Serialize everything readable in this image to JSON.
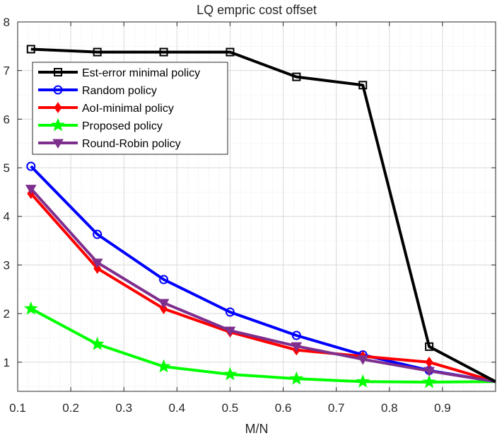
{
  "chart_data": {
    "type": "line",
    "title": "LQ empric cost offset",
    "xlabel": "M/N",
    "ylabel": "",
    "xlim": [
      0.1,
      1.0
    ],
    "ylim": [
      0.4,
      8
    ],
    "xticks": [
      0.1,
      0.2,
      0.3,
      0.4,
      0.5,
      0.6,
      0.7,
      0.8,
      0.9
    ],
    "xtick_labels": [
      "0.1",
      "0.2",
      "0.3",
      "0.4",
      "0.5",
      "0.6",
      "0.7",
      "0.8",
      "0.9"
    ],
    "yticks": [
      1,
      2,
      3,
      4,
      5,
      6,
      7,
      8
    ],
    "ytick_labels": [
      "1",
      "2",
      "3",
      "4",
      "5",
      "6",
      "7",
      "8"
    ],
    "grid": true,
    "legend_position": "top-left",
    "x": [
      0.125,
      0.25,
      0.375,
      0.5,
      0.625,
      0.75,
      0.875,
      1.0
    ],
    "series": [
      {
        "name": "Est-error minimal policy",
        "color": "#000000",
        "marker": "square",
        "values": [
          7.44,
          7.38,
          7.38,
          7.38,
          6.87,
          6.7,
          1.32,
          0.6
        ]
      },
      {
        "name": "Random policy",
        "color": "#0000ff",
        "marker": "circle",
        "values": [
          5.03,
          3.63,
          2.7,
          2.03,
          1.55,
          1.15,
          0.83,
          0.6
        ]
      },
      {
        "name": "AoI-minimal policy",
        "color": "#ff0000",
        "marker": "diamond",
        "values": [
          4.47,
          2.93,
          2.1,
          1.62,
          1.25,
          1.12,
          1.0,
          0.6
        ]
      },
      {
        "name": "Proposed policy",
        "color": "#00ff00",
        "marker": "star",
        "values": [
          2.1,
          1.37,
          0.91,
          0.75,
          0.66,
          0.6,
          0.59,
          0.6
        ]
      },
      {
        "name": "Round-Robin policy",
        "color": "#7e2f8e",
        "marker": "triangle-down",
        "values": [
          4.57,
          3.05,
          2.22,
          1.65,
          1.33,
          1.06,
          0.82,
          0.6
        ]
      }
    ]
  }
}
